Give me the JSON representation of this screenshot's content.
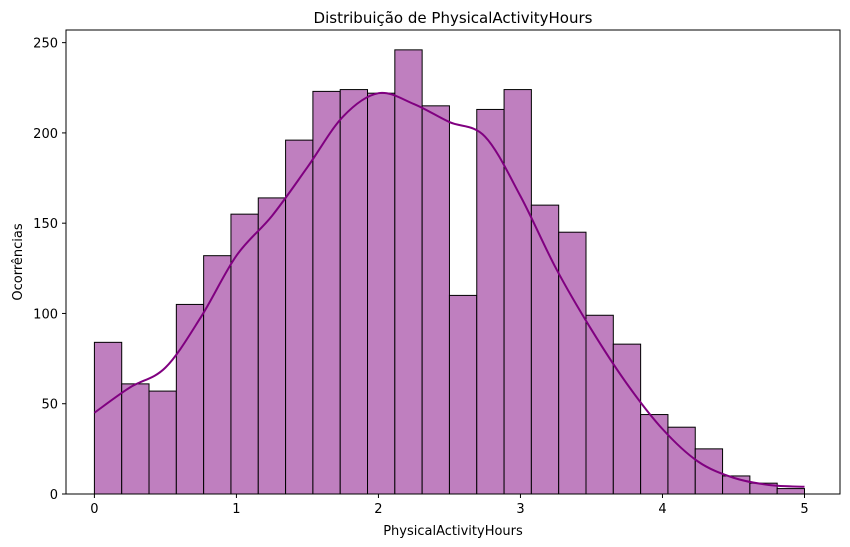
{
  "chart_data": {
    "type": "bar",
    "title": "Distribuição de PhysicalActivityHours",
    "xlabel": "PhysicalActivityHours",
    "ylabel": "Ocorrências",
    "xlim": [
      -0.2,
      5.25
    ],
    "ylim": [
      0,
      257
    ],
    "xticks": [
      0,
      1,
      2,
      3,
      4,
      5
    ],
    "yticks": [
      0,
      50,
      100,
      150,
      200,
      250
    ],
    "grid": false,
    "bin_edges": [
      0,
      0.1923,
      0.3846,
      0.5769,
      0.7692,
      0.9615,
      1.1538,
      1.3462,
      1.5385,
      1.7308,
      1.9231,
      2.1154,
      2.3077,
      2.5,
      2.6923,
      2.8846,
      3.0769,
      3.2692,
      3.4615,
      3.6538,
      3.8462,
      4.0385,
      4.2308,
      4.4231,
      4.6154,
      4.8077,
      5.0
    ],
    "counts": [
      84,
      61,
      57,
      105,
      132,
      155,
      164,
      196,
      223,
      224,
      222,
      246,
      215,
      110,
      213,
      224,
      160,
      145,
      99,
      83,
      44,
      37,
      25,
      10,
      6,
      3
    ],
    "kde": {
      "x": [
        0,
        0.25,
        0.5,
        0.75,
        1.0,
        1.25,
        1.5,
        1.75,
        2.0,
        2.25,
        2.5,
        2.75,
        3.0,
        3.25,
        3.5,
        3.75,
        4.0,
        4.25,
        4.5,
        4.75,
        5.0
      ],
      "y": [
        45,
        59,
        70,
        98,
        132,
        154,
        181,
        209,
        222,
        216,
        206,
        198,
        165,
        125,
        91,
        61,
        36,
        18,
        9,
        5,
        4
      ]
    },
    "colors": {
      "bar_fill": "#bf7fbf",
      "bar_edge": "#000000",
      "kde_line": "#800080"
    }
  }
}
